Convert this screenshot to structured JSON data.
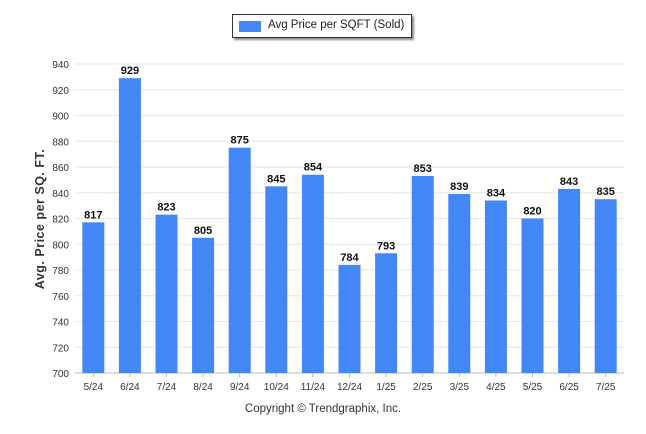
{
  "chart_data": {
    "type": "bar",
    "legend": [
      "Avg Price per SQFT (Sold)"
    ],
    "categories": [
      "5/24",
      "6/24",
      "7/24",
      "8/24",
      "9/24",
      "10/24",
      "11/24",
      "12/24",
      "1/25",
      "2/25",
      "3/25",
      "4/25",
      "5/25",
      "6/25",
      "7/25"
    ],
    "series": [
      {
        "name": "Avg Price per SQFT (Sold)",
        "values": [
          817,
          929,
          823,
          805,
          875,
          845,
          854,
          784,
          793,
          853,
          839,
          834,
          820,
          843,
          835
        ]
      }
    ],
    "ylabel": "Avg. Price per SQ. FT.",
    "xlabel": "",
    "ylim": [
      700,
      940
    ],
    "yticks": [
      700,
      720,
      740,
      760,
      780,
      800,
      820,
      840,
      860,
      880,
      900,
      920,
      940
    ],
    "grid": true,
    "legend_position": "top-center",
    "bar_color": "#4287f5"
  },
  "footer": {
    "copyright": "Copyright © Trendgraphix, Inc."
  }
}
